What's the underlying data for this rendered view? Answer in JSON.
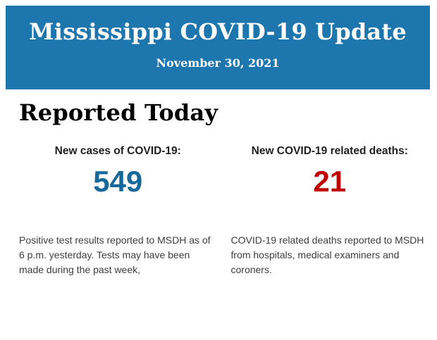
{
  "header": {
    "title": "Mississippi COVID-19 Update",
    "date": "November 30, 2021",
    "background_color": "#1d76ad",
    "text_color": "#ffffff"
  },
  "main": {
    "section_title": "Reported Today",
    "stats": [
      {
        "label": "New cases of COVID-19:",
        "value": "549",
        "value_color": "#17699c",
        "description": "Positive test results reported to MSDH as of 6 p.m. yesterday. Tests may have been made during the past week,"
      },
      {
        "label": "New COVID-19 related deaths:",
        "value": "21",
        "value_color": "#c00000",
        "description": "COVID-19 related deaths reported to MSDH from hospitals, medical examiners and coroners."
      }
    ]
  }
}
